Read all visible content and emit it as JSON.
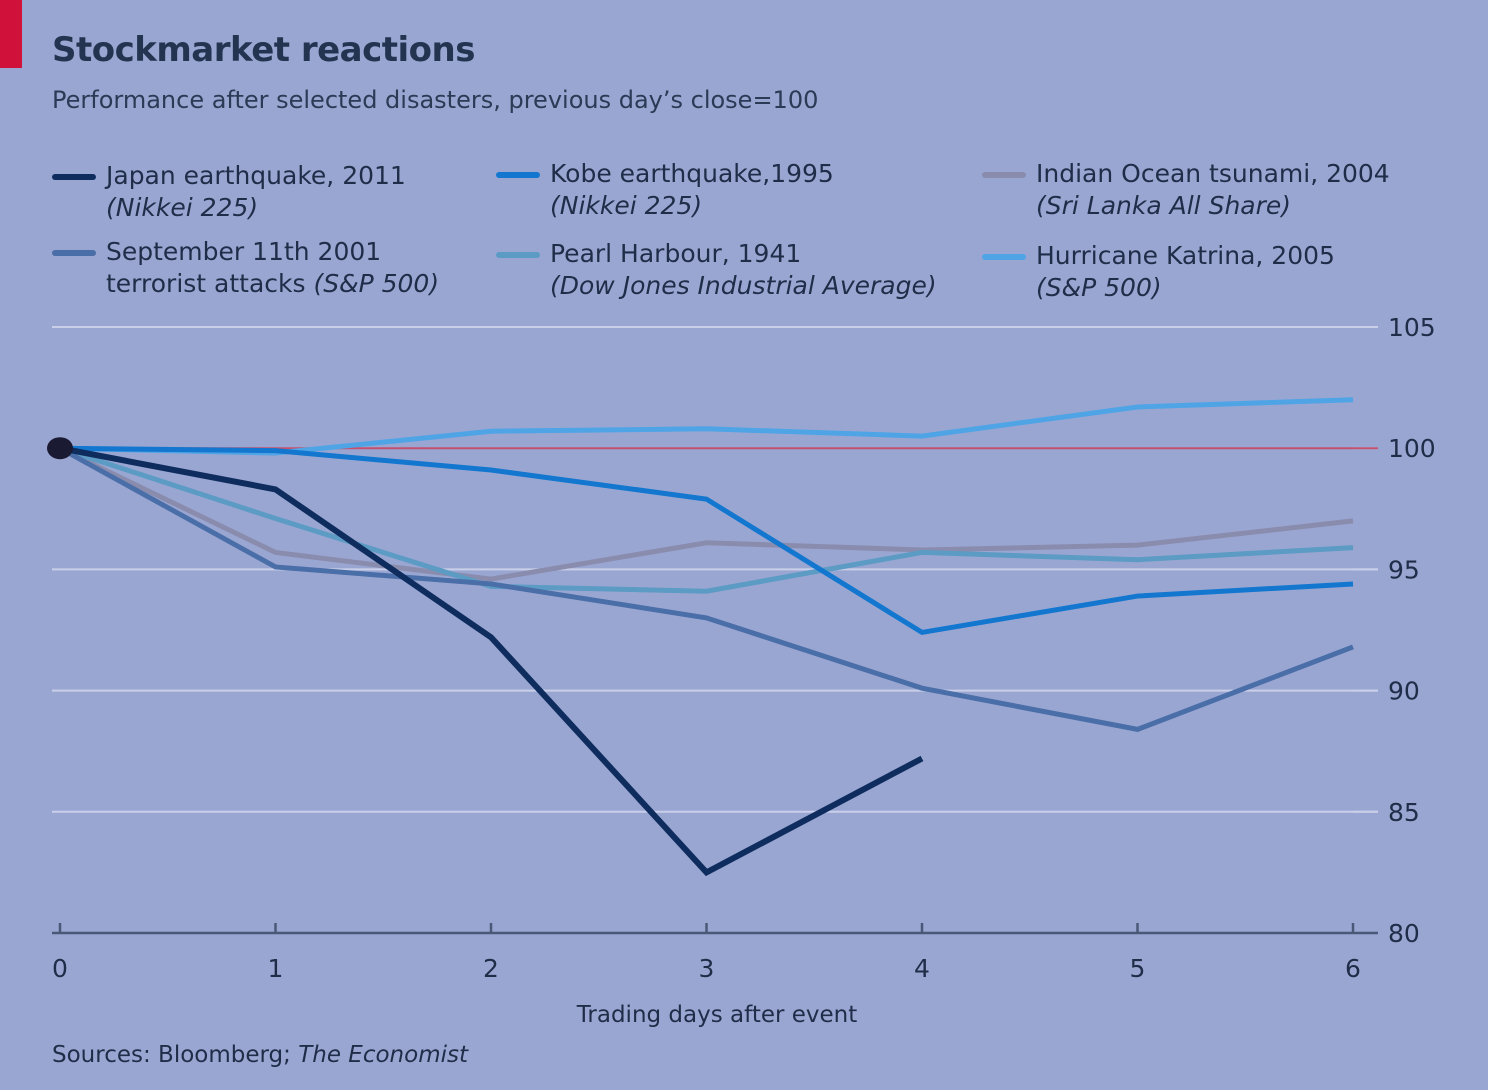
{
  "title": "Stockmarket reactions",
  "subtitle": "Performance after selected disasters, previous day’s close=100",
  "source_prefix": "Sources: Bloomberg; ",
  "source_italic": "The Economist",
  "colors": {
    "background": "#9aa6d2",
    "gridline": "#c9cfe9",
    "reference_line": "#c4506f",
    "axis": "#4a5878",
    "origin_dot": "#1a1a33"
  },
  "legend": [
    {
      "line1": "Japan earthquake, 2011",
      "line2_italic": "(Nikkei 225)",
      "color": "#0e2d5e"
    },
    {
      "line1": "Kobe earthquake,1995",
      "line2_italic": "(Nikkei 225)",
      "color": "#1377cf"
    },
    {
      "line1": "Indian Ocean tsunami, 2004",
      "line2_italic": "(Sri Lanka All Share)",
      "color": "#8a8cae"
    },
    {
      "line1": "September 11th 2001",
      "line2_plain": "terrorist attacks ",
      "line2_italic": "(S&P 500)",
      "color": "#4a6ea8"
    },
    {
      "line1": "Pearl Harbour, 1941",
      "line2_italic": "(Dow Jones Industrial Average)",
      "color": "#5b9bc4"
    },
    {
      "line1": "Hurricane Katrina, 2005",
      "line2_italic": "(S&P 500)",
      "color": "#4fa4e6"
    }
  ],
  "chart_data": {
    "type": "line",
    "title": "Stockmarket reactions",
    "subtitle": "Performance after selected disasters, previous day’s close=100",
    "xlabel": "Trading days after event",
    "ylabel": "",
    "x": [
      0,
      1,
      2,
      3,
      4,
      5,
      6
    ],
    "xticks": [
      "0",
      "1",
      "2",
      "3",
      "4",
      "5",
      "6"
    ],
    "yticks": [
      "105",
      "100",
      "95",
      "90",
      "85",
      "80"
    ],
    "ylim": [
      80,
      105
    ],
    "xlim": [
      0,
      6
    ],
    "y_axis_side": "right",
    "reference_value": 100,
    "grid": true,
    "legend_position": "top",
    "series": [
      {
        "name": "Japan earthquake, 2011 (Nikkei 225)",
        "values": [
          100,
          98.3,
          92.2,
          82.5,
          87.2,
          null,
          null
        ]
      },
      {
        "name": "Kobe earthquake,1995 (Nikkei 225)",
        "values": [
          100,
          99.9,
          99.1,
          97.9,
          92.4,
          93.9,
          94.4
        ]
      },
      {
        "name": "Indian Ocean tsunami, 2004 (Sri Lanka All Share)",
        "values": [
          100,
          95.7,
          94.6,
          96.1,
          95.8,
          96.0,
          97.0
        ]
      },
      {
        "name": "September 11th 2001 terrorist attacks (S&P 500)",
        "values": [
          100,
          95.1,
          94.4,
          93.0,
          90.1,
          88.4,
          91.8
        ]
      },
      {
        "name": "Pearl Harbour, 1941 (Dow Jones Industrial Average)",
        "values": [
          100,
          97.1,
          94.3,
          94.1,
          95.7,
          95.4,
          95.9
        ]
      },
      {
        "name": "Hurricane Katrina, 2005 (S&P 500)",
        "values": [
          100,
          99.8,
          100.7,
          100.8,
          100.5,
          101.7,
          102.0
        ]
      }
    ]
  }
}
